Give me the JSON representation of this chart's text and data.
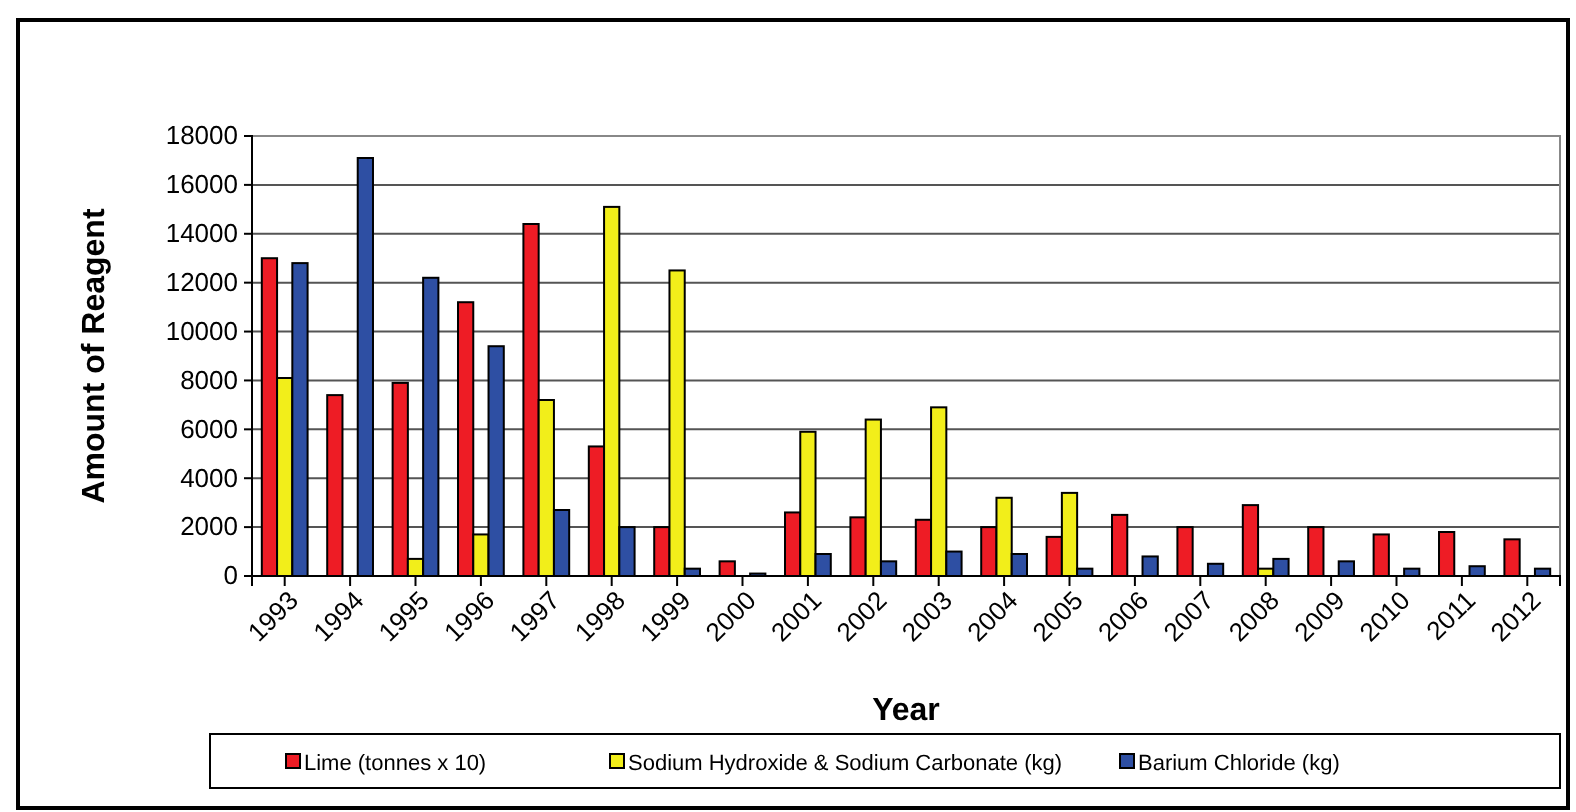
{
  "chart_data": {
    "type": "bar",
    "xlabel": "Year",
    "ylabel": "Amount of Reagent",
    "categories": [
      "1993",
      "1994",
      "1995",
      "1996",
      "1997",
      "1998",
      "1999",
      "2000",
      "2001",
      "2002",
      "2003",
      "2004",
      "2005",
      "2006",
      "2007",
      "2008",
      "2009",
      "2010",
      "2011",
      "2012"
    ],
    "series": [
      {
        "name": "Lime (tonnes x 10)",
        "color": "#ee1c25",
        "values": [
          13000,
          7400,
          7900,
          11200,
          14400,
          5300,
          2000,
          600,
          2600,
          2400,
          2300,
          2000,
          1600,
          2500,
          2000,
          2900,
          2000,
          1700,
          1800,
          1500
        ]
      },
      {
        "name": "Sodium Hydroxide & Sodium Carbonate (kg)",
        "color": "#f2ee1a",
        "values": [
          8100,
          null,
          700,
          1700,
          7200,
          15100,
          12500,
          null,
          5900,
          6400,
          6900,
          3200,
          3400,
          null,
          null,
          300,
          null,
          null,
          null,
          null
        ]
      },
      {
        "name": "Barium Chloride (kg)",
        "color": "#2e4fa3",
        "values": [
          12800,
          17100,
          12200,
          9400,
          2700,
          2000,
          300,
          100,
          900,
          600,
          1000,
          900,
          300,
          800,
          500,
          700,
          600,
          300,
          400,
          300
        ]
      }
    ],
    "ylim": [
      0,
      18000
    ],
    "yticks": [
      0,
      2000,
      4000,
      6000,
      8000,
      10000,
      12000,
      14000,
      16000,
      18000
    ],
    "grid": "y",
    "legend": "bottom"
  }
}
